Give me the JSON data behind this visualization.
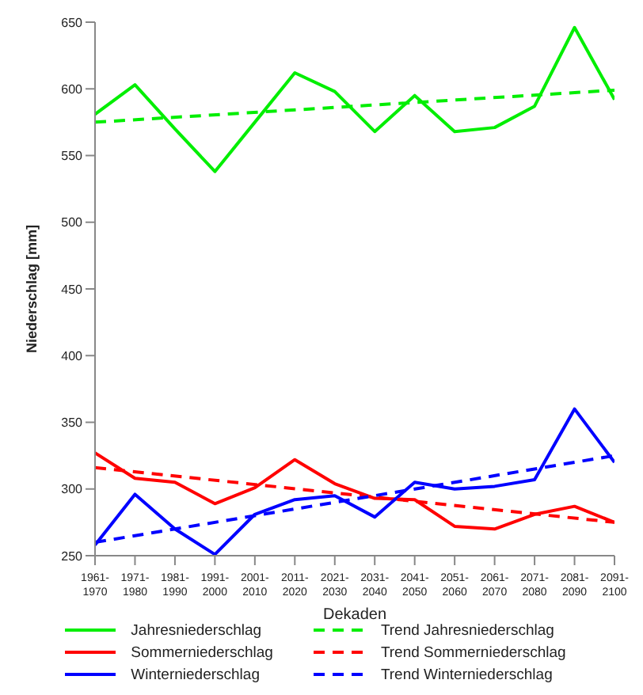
{
  "chart_data": {
    "type": "line",
    "xlabel": "Dekaden",
    "ylabel": "Niederschlag [mm]",
    "categories": [
      "1961-1970",
      "1971-1980",
      "1981-1990",
      "1991-2000",
      "2001-2010",
      "2011-2020",
      "2021-2030",
      "2031-2040",
      "2041-2050",
      "2051-2060",
      "2061-2070",
      "2071-2080",
      "2081-2090",
      "2091-2100"
    ],
    "ylim": [
      250,
      650
    ],
    "yticks": [
      250,
      300,
      350,
      400,
      450,
      500,
      550,
      600,
      650
    ],
    "grid": false,
    "legend": "bottom",
    "marker": "none",
    "series": [
      {
        "name": "Jahresniederschlag",
        "color": "#00ee00",
        "line_style": "solid",
        "values": [
          581,
          603,
          570,
          538,
          575,
          612,
          598,
          568,
          595,
          568,
          571,
          587,
          646,
          592
        ]
      },
      {
        "name": "Sommerniederschlag",
        "color": "#ff0000",
        "line_style": "solid",
        "values": [
          327,
          308,
          305,
          289,
          301,
          322,
          304,
          293,
          292,
          272,
          270,
          281,
          287,
          275
        ]
      },
      {
        "name": "Winterniederschlag",
        "color": "#0000ff",
        "line_style": "solid",
        "values": [
          258,
          296,
          270,
          251,
          281,
          292,
          295,
          279,
          305,
          300,
          302,
          307,
          360,
          320
        ]
      },
      {
        "name": "Trend Jahresniederschlag",
        "color": "#00ee00",
        "line_style": "dashed",
        "x": [
          "1961-1970",
          "2091-2100"
        ],
        "values": [
          575,
          599
        ]
      },
      {
        "name": "Trend Sommerniederschlag",
        "color": "#ff0000",
        "line_style": "dashed",
        "x": [
          "1961-1970",
          "2091-2100"
        ],
        "values": [
          316,
          275
        ]
      },
      {
        "name": "Trend Winterniederschlag",
        "color": "#0000ff",
        "line_style": "dashed",
        "x": [
          "1961-1970",
          "2091-2100"
        ],
        "values": [
          260,
          325
        ]
      }
    ]
  }
}
